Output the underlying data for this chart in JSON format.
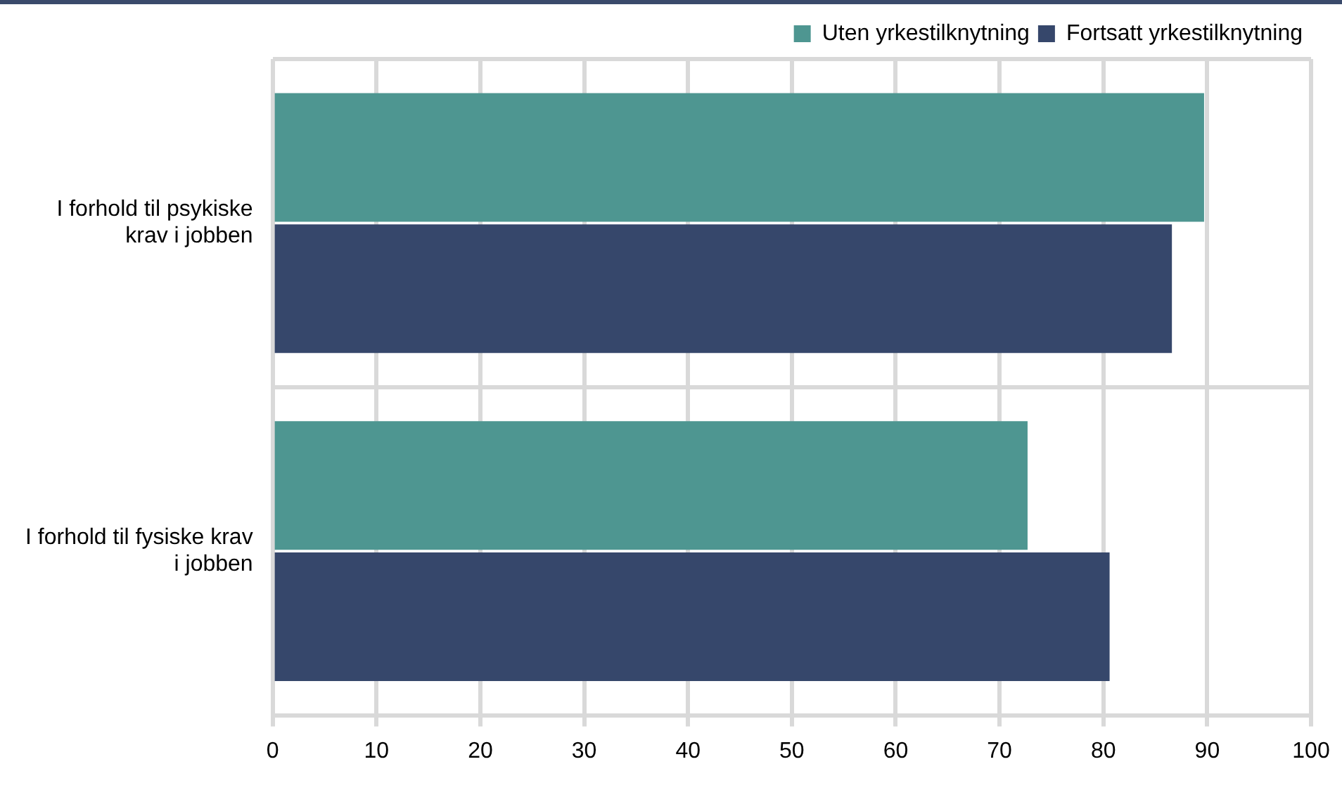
{
  "chart_data": {
    "type": "bar",
    "orientation": "horizontal",
    "categories": [
      "I forhold til psykiske krav i jobben",
      "I forhold til fysiske krav i jobben"
    ],
    "series": [
      {
        "name": "Uten yrkestilknytning",
        "color": "#4e9691",
        "values": [
          89.7,
          72.7
        ]
      },
      {
        "name": "Fortsatt yrkestilknytning",
        "color": "#36476b",
        "values": [
          86.6,
          80.6
        ]
      }
    ],
    "xlim": [
      0,
      100
    ],
    "xticks": [
      0,
      10,
      20,
      30,
      40,
      50,
      60,
      70,
      80,
      90,
      100
    ],
    "grid": true,
    "legend": "top right"
  }
}
